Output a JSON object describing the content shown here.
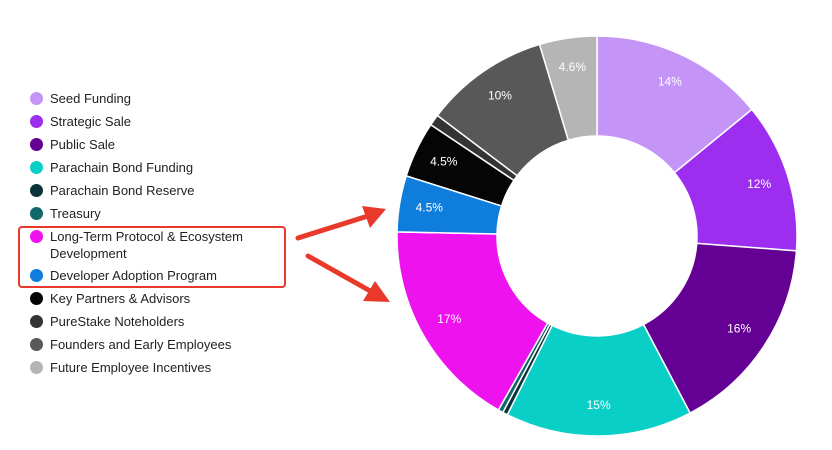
{
  "chart_data": {
    "type": "pie",
    "donut": true,
    "legend_position": "left",
    "slices": [
      {
        "name": "Seed Funding",
        "value": 14,
        "label": "14%",
        "color": "#c495f7"
      },
      {
        "name": "Strategic Sale",
        "value": 12,
        "label": "12%",
        "color": "#9d2ef0"
      },
      {
        "name": "Public Sale",
        "value": 16,
        "label": "16%",
        "color": "#640093"
      },
      {
        "name": "Parachain Bond Funding",
        "value": 15,
        "label": "15%",
        "color": "#0acfc6"
      },
      {
        "name": "Parachain Bond Reserve",
        "value": 0.4,
        "label": "",
        "color": "#0b3438"
      },
      {
        "name": "Treasury",
        "value": 0.4,
        "label": "",
        "color": "#10686a"
      },
      {
        "name": "Long-Term Protocol & Ecosystem Development",
        "value": 17,
        "label": "17%",
        "color": "#ed12ee"
      },
      {
        "name": "Developer Adoption Program",
        "value": 4.5,
        "label": "4.5%",
        "color": "#0f7ddc"
      },
      {
        "name": "Key Partners & Advisors",
        "value": 4.5,
        "label": "4.5%",
        "color": "#050505"
      },
      {
        "name": "PureStake Noteholders",
        "value": 0.9,
        "label": "",
        "color": "#343434"
      },
      {
        "name": "Founders and Early Employees",
        "value": 10,
        "label": "10%",
        "color": "#585858"
      },
      {
        "name": "Future Employee Incentives",
        "value": 4.6,
        "label": "4.6%",
        "color": "#b5b5b5"
      }
    ]
  },
  "legend": {
    "items": [
      {
        "label": "Seed Funding",
        "color": "#c495f7"
      },
      {
        "label": "Strategic Sale",
        "color": "#9d2ef0"
      },
      {
        "label": "Public Sale",
        "color": "#640093"
      },
      {
        "label": "Parachain Bond Funding",
        "color": "#0acfc6"
      },
      {
        "label": "Parachain Bond Reserve",
        "color": "#0b3438"
      },
      {
        "label": "Treasury",
        "color": "#10686a"
      },
      {
        "label": "Long-Term Protocol & Ecosystem Development",
        "color": "#ed12ee"
      },
      {
        "label": "Developer Adoption Program",
        "color": "#0f7ddc"
      },
      {
        "label": "Key Partners & Advisors",
        "color": "#050505"
      },
      {
        "label": "PureStake Noteholders",
        "color": "#343434"
      },
      {
        "label": "Founders and Early Employees",
        "color": "#585858"
      },
      {
        "label": "Future Employee Incentives",
        "color": "#b5b5b5"
      }
    ]
  },
  "annotations": {
    "highlight_color": "#e8392b",
    "highlighted_items": [
      "Long-Term Protocol & Ecosystem Development",
      "Developer Adoption Program"
    ]
  }
}
